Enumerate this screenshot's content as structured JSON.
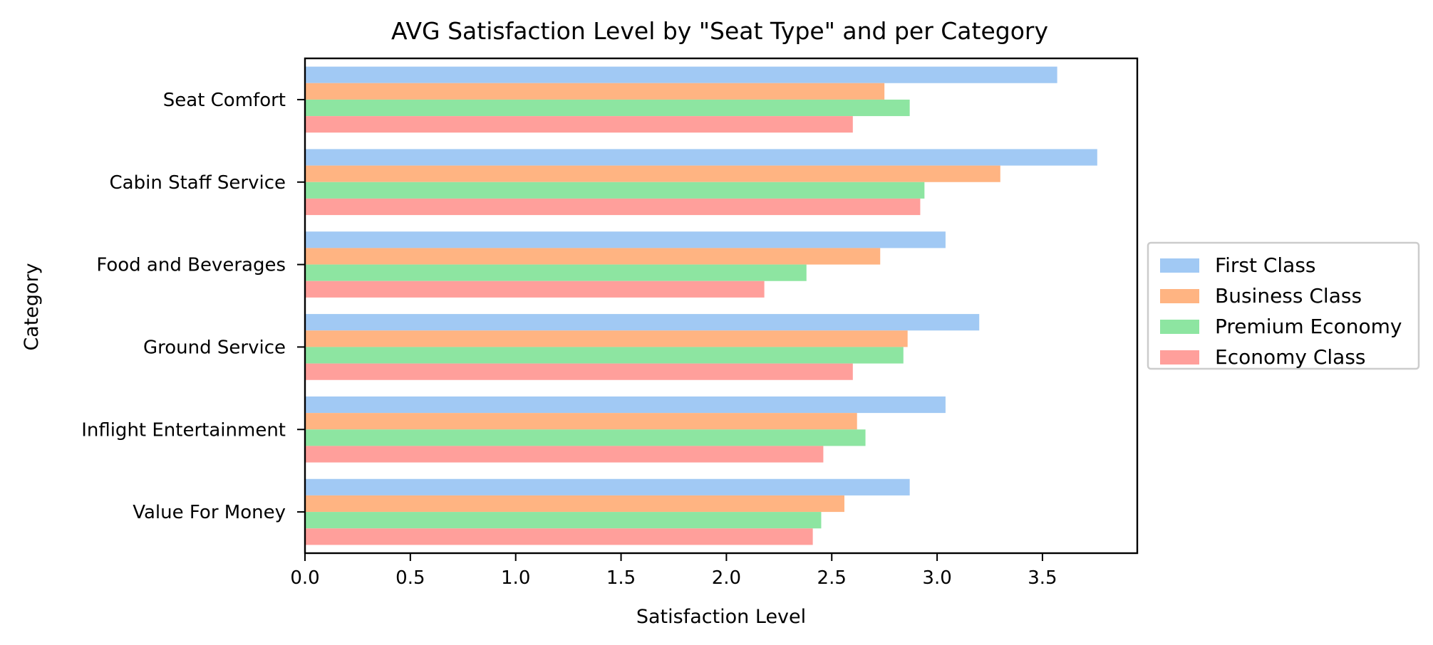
{
  "chart_data": {
    "type": "bar",
    "orientation": "horizontal",
    "title": "AVG Satisfaction Level by \"Seat Type\" and per Category",
    "xlabel": "Satisfaction Level",
    "ylabel": "Category",
    "xlim": [
      0,
      3.95
    ],
    "xticks": [
      "0.0",
      "0.5",
      "1.0",
      "1.5",
      "2.0",
      "2.5",
      "3.0",
      "3.5"
    ],
    "grid": false,
    "legend_position": "right",
    "categories": [
      "Seat Comfort",
      "Cabin Staff Service",
      "Food and Beverages",
      "Ground Service",
      "Inflight Entertainment",
      "Value For Money"
    ],
    "series": [
      {
        "name": "First Class",
        "color": "#a1c9f4",
        "values": [
          3.57,
          3.76,
          3.04,
          3.2,
          3.04,
          2.87
        ]
      },
      {
        "name": "Business Class",
        "color": "#ffb482",
        "values": [
          2.75,
          3.3,
          2.73,
          2.86,
          2.62,
          2.56
        ]
      },
      {
        "name": "Premium Economy",
        "color": "#8de5a1",
        "values": [
          2.87,
          2.94,
          2.38,
          2.84,
          2.66,
          2.45
        ]
      },
      {
        "name": "Economy Class",
        "color": "#ff9f9b",
        "values": [
          2.6,
          2.92,
          2.18,
          2.6,
          2.46,
          2.41
        ]
      }
    ]
  }
}
